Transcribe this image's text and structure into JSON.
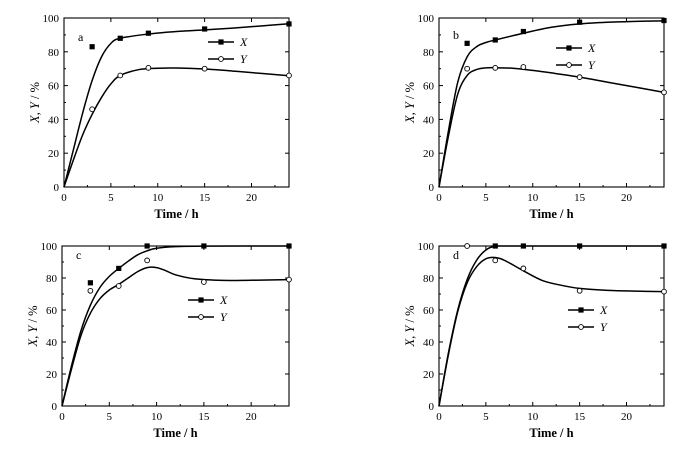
{
  "chart_data": [
    {
      "type": "line",
      "panel_label": "a",
      "xlabel": "Time / h",
      "ylabel": {
        "parts": [
          "X",
          ", ",
          "Y",
          " / %"
        ]
      },
      "xlim": [
        0,
        24
      ],
      "ylim": [
        0,
        100
      ],
      "xticks": [
        0,
        5,
        10,
        15,
        20
      ],
      "yticks": [
        0,
        20,
        40,
        60,
        80,
        100
      ],
      "legend": "top-right",
      "series": [
        {
          "name": "X",
          "marker": "square",
          "points": [
            [
              3,
              83
            ],
            [
              6,
              88
            ],
            [
              9,
              91
            ],
            [
              15,
              93.5
            ],
            [
              24,
              96.5
            ]
          ],
          "curve": [
            [
              0,
              0
            ],
            [
              1,
              22
            ],
            [
              2,
              44
            ],
            [
              3,
              63
            ],
            [
              4,
              77
            ],
            [
              5,
              85
            ],
            [
              6,
              88
            ],
            [
              9,
              90.5
            ],
            [
              12,
              92
            ],
            [
              15,
              93
            ],
            [
              18,
              94
            ],
            [
              21,
              95.3
            ],
            [
              24,
              96.6
            ]
          ]
        },
        {
          "name": "Y",
          "marker": "circle",
          "points": [
            [
              3,
              46
            ],
            [
              6,
              66
            ],
            [
              9,
              70.5
            ],
            [
              15,
              70
            ],
            [
              24,
              66
            ]
          ],
          "curve": [
            [
              0,
              0
            ],
            [
              1,
              16
            ],
            [
              2,
              31
            ],
            [
              3,
              43
            ],
            [
              4,
              53
            ],
            [
              5,
              61
            ],
            [
              6,
              66
            ],
            [
              8,
              69.5
            ],
            [
              10,
              70.3
            ],
            [
              12,
              70.4
            ],
            [
              15,
              69.8
            ],
            [
              18,
              68.6
            ],
            [
              21,
              67.2
            ],
            [
              24,
              65.8
            ]
          ]
        }
      ]
    },
    {
      "type": "line",
      "panel_label": "b",
      "xlabel": "Time / h",
      "ylabel": {
        "parts": [
          "X",
          ", ",
          "Y",
          " / %"
        ]
      },
      "xlim": [
        0,
        24
      ],
      "ylim": [
        0,
        100
      ],
      "xticks": [
        0,
        5,
        10,
        15,
        20
      ],
      "yticks": [
        0,
        20,
        40,
        60,
        80,
        100
      ],
      "legend": "top-right",
      "series": [
        {
          "name": "X",
          "marker": "square",
          "points": [
            [
              3,
              85
            ],
            [
              6,
              87
            ],
            [
              9,
              92
            ],
            [
              15,
              97.5
            ],
            [
              24,
              98.5
            ]
          ],
          "curve": [
            [
              0,
              0
            ],
            [
              1,
              33
            ],
            [
              2,
              62
            ],
            [
              3,
              77
            ],
            [
              4,
              83
            ],
            [
              5,
              85.5
            ],
            [
              6,
              87
            ],
            [
              9,
              91
            ],
            [
              12,
              94.5
            ],
            [
              15,
              96.5
            ],
            [
              18,
              97.5
            ],
            [
              21,
              98
            ],
            [
              24,
              98.3
            ]
          ]
        },
        {
          "name": "Y",
          "marker": "circle",
          "points": [
            [
              3,
              70
            ],
            [
              6,
              70.5
            ],
            [
              9,
              71
            ],
            [
              15,
              65
            ],
            [
              24,
              56
            ]
          ],
          "curve": [
            [
              0,
              0
            ],
            [
              1,
              30
            ],
            [
              2,
              55
            ],
            [
              3,
              66
            ],
            [
              4,
              69.5
            ],
            [
              5,
              70.5
            ],
            [
              6,
              70.6
            ],
            [
              8,
              70.2
            ],
            [
              10,
              69
            ],
            [
              12,
              67.5
            ],
            [
              15,
              65
            ],
            [
              18,
              62
            ],
            [
              21,
              59
            ],
            [
              24,
              56
            ]
          ]
        }
      ]
    },
    {
      "type": "line",
      "panel_label": "c",
      "xlabel": "Time / h",
      "ylabel": {
        "parts": [
          "X",
          ", ",
          "Y",
          " / %"
        ]
      },
      "xlim": [
        0,
        24
      ],
      "ylim": [
        0,
        100
      ],
      "xticks": [
        0,
        5,
        10,
        15,
        20
      ],
      "yticks": [
        0,
        20,
        40,
        60,
        80,
        100
      ],
      "legend": "center-right",
      "series": [
        {
          "name": "X",
          "marker": "square",
          "points": [
            [
              3,
              77
            ],
            [
              6,
              86
            ],
            [
              9,
              100
            ],
            [
              15,
              100
            ],
            [
              24,
              100
            ]
          ],
          "curve": [
            [
              0,
              0
            ],
            [
              1,
              25
            ],
            [
              2,
              47
            ],
            [
              3,
              63
            ],
            [
              4,
              74
            ],
            [
              5,
              81
            ],
            [
              6,
              86
            ],
            [
              7,
              90.5
            ],
            [
              8,
              94.5
            ],
            [
              9,
              97
            ],
            [
              10,
              98.6
            ],
            [
              12,
              99.6
            ],
            [
              15,
              99.9
            ],
            [
              24,
              100
            ]
          ]
        },
        {
          "name": "Y",
          "marker": "circle",
          "points": [
            [
              3,
              72
            ],
            [
              6,
              75
            ],
            [
              9,
              91
            ],
            [
              15,
              77.5
            ],
            [
              24,
              79
            ]
          ],
          "curve": [
            [
              0,
              0
            ],
            [
              1,
              23
            ],
            [
              2,
              44
            ],
            [
              3,
              58
            ],
            [
              4,
              67
            ],
            [
              5,
              72.5
            ],
            [
              6,
              76
            ],
            [
              7,
              80
            ],
            [
              8,
              84
            ],
            [
              9,
              86.5
            ],
            [
              10,
              86.5
            ],
            [
              11,
              84.5
            ],
            [
              12,
              82
            ],
            [
              14,
              79.5
            ],
            [
              17,
              78.5
            ],
            [
              20,
              78.6
            ],
            [
              24,
              79
            ]
          ]
        }
      ]
    },
    {
      "type": "line",
      "panel_label": "d",
      "xlabel": "Time / h",
      "ylabel": {
        "parts": [
          "X",
          ", ",
          "Y",
          " / %"
        ]
      },
      "xlim": [
        0,
        24
      ],
      "ylim": [
        0,
        100
      ],
      "xticks": [
        0,
        5,
        10,
        15,
        20
      ],
      "yticks": [
        0,
        20,
        40,
        60,
        80,
        100
      ],
      "legend": "center-right",
      "series": [
        {
          "name": "X",
          "marker": "square",
          "points": [
            [
              6,
              100
            ],
            [
              9,
              100
            ],
            [
              15,
              100
            ],
            [
              24,
              100
            ]
          ],
          "curve": [
            [
              0,
              0
            ],
            [
              1,
              33
            ],
            [
              2,
              60
            ],
            [
              3,
              79
            ],
            [
              4,
              91
            ],
            [
              5,
              97.5
            ],
            [
              6,
              99.7
            ],
            [
              8,
              100
            ],
            [
              24,
              100
            ]
          ]
        },
        {
          "name": "Y",
          "marker": "circle",
          "points": [
            [
              3,
              100
            ],
            [
              6,
              91
            ],
            [
              9,
              86
            ],
            [
              15,
              72
            ],
            [
              24,
              71.5
            ]
          ],
          "curve": [
            [
              0,
              0
            ],
            [
              1,
              32
            ],
            [
              2,
              59
            ],
            [
              3,
              77
            ],
            [
              4,
              87
            ],
            [
              5,
              92
            ],
            [
              6,
              92.8
            ],
            [
              7,
              91
            ],
            [
              9,
              84.5
            ],
            [
              11,
              78.5
            ],
            [
              13,
              75.5
            ],
            [
              15,
              73.5
            ],
            [
              18,
              72.3
            ],
            [
              21,
              71.8
            ],
            [
              24,
              71.5
            ]
          ]
        }
      ]
    }
  ]
}
